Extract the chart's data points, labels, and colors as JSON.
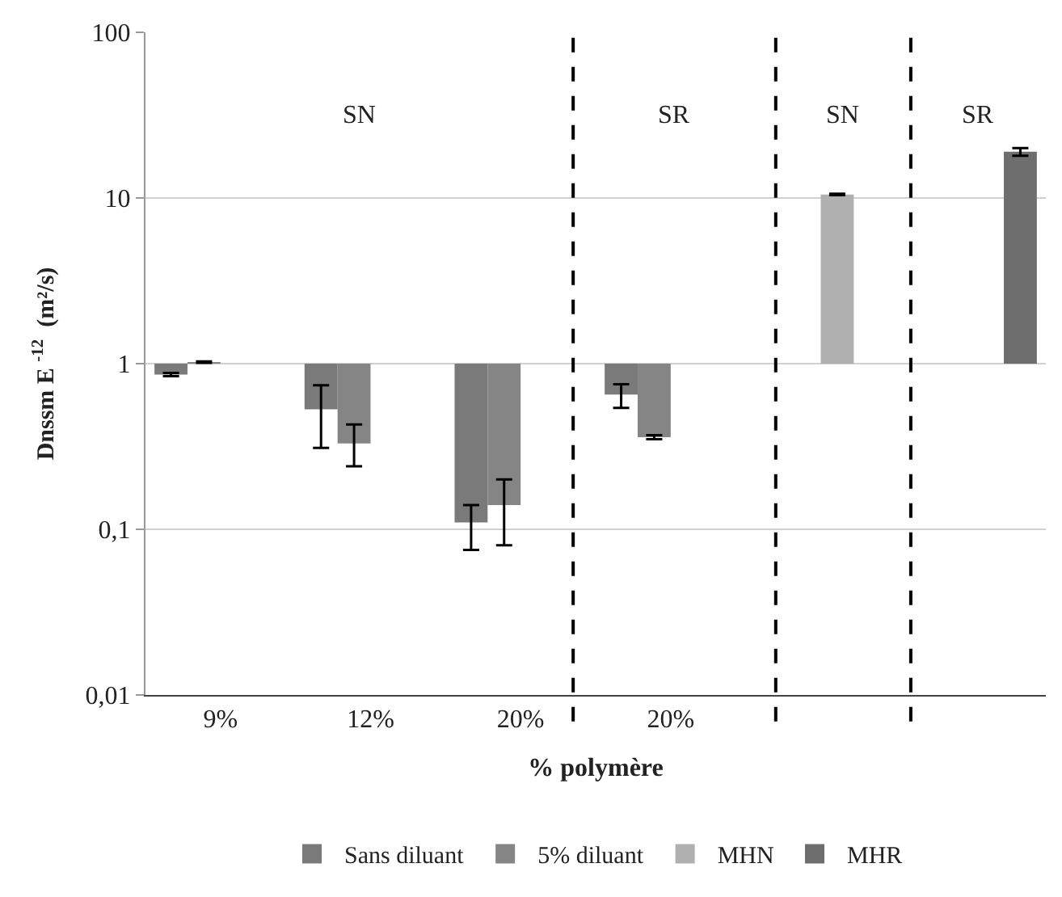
{
  "chart_data": {
    "type": "bar",
    "xlabel": "% polymère",
    "ylabel": "Dnssm E $^{-12}$  (m²/s)",
    "categories": [
      "9%",
      "12%",
      "20%",
      "20%",
      null,
      null
    ],
    "series": [
      {
        "name": "Sans diluant",
        "color": "#7a7a7a",
        "base": [
          1,
          1,
          1,
          1,
          null,
          null
        ],
        "values": [
          -0.14,
          -0.47,
          -0.89,
          -0.35,
          null,
          null
        ],
        "errors": [
          [
            0.84,
            0.88
          ],
          [
            0.31,
            0.74
          ],
          [
            0.075,
            0.14
          ],
          [
            0.54,
            0.75
          ],
          null,
          null
        ]
      },
      {
        "name": "5% diluant",
        "color": "#858585",
        "base": [
          1,
          1,
          1,
          1,
          null,
          null
        ],
        "values": [
          0.02,
          -0.67,
          -0.86,
          -0.64,
          null,
          null
        ],
        "errors": [
          [
            1.01,
            1.03
          ],
          [
            0.24,
            0.43
          ],
          [
            0.08,
            0.2
          ],
          [
            0.35,
            0.37
          ],
          null,
          null
        ]
      },
      {
        "name": "MHN",
        "color": "#b0b0b0",
        "base": [
          null,
          null,
          null,
          null,
          1,
          null
        ],
        "values": [
          null,
          null,
          null,
          null,
          9.5,
          null
        ],
        "errors": [
          null,
          null,
          null,
          null,
          [
            10.4,
            10.6
          ],
          null
        ]
      },
      {
        "name": "MHR",
        "color": "#6e6e6e",
        "base": [
          null,
          null,
          null,
          null,
          null,
          1
        ],
        "values": [
          null,
          null,
          null,
          null,
          null,
          18
        ],
        "errors": [
          null,
          null,
          null,
          null,
          null,
          [
            18,
            20
          ]
        ]
      }
    ],
    "log": "y",
    "ylim": [
      0.01,
      100
    ],
    "yticks": [
      {
        "value": 0.01,
        "label": "0,01"
      },
      {
        "value": 0.1,
        "label": "0,1"
      },
      1,
      10,
      100
    ],
    "grid": "y",
    "legend": "bottom",
    "annotations": [
      "SN",
      "SR",
      "SN",
      "SR"
    ]
  }
}
